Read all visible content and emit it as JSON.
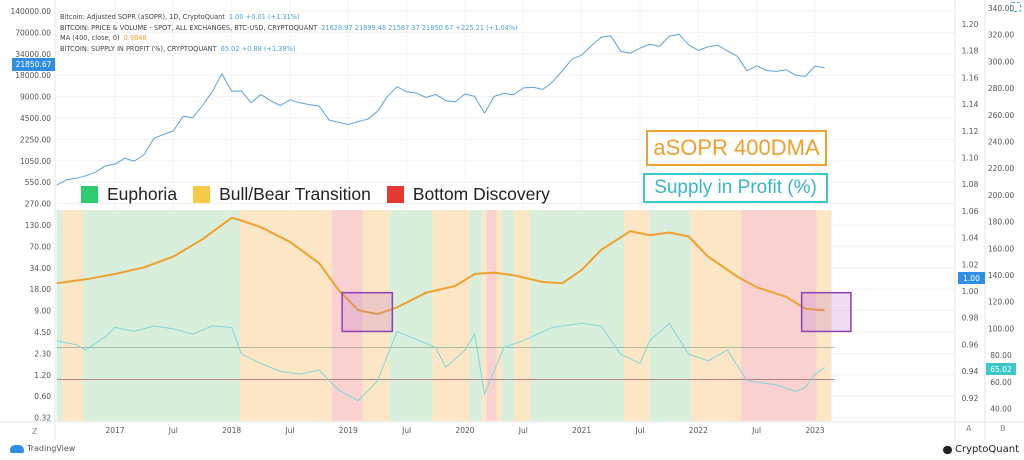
{
  "header": {
    "line1_label": "Bitcoin: Adjusted SOPR (aSOPR), 1D, CryptoQuant",
    "line1_values": "1.00  +0.01 (+1.31%)",
    "line2_label": "BITCOIN: PRICE & VOLUME - SPOT, ALL EXCHANGES, BTC-USD, CRYPTOQUANT",
    "line2_values": "21628.97  21899.48  21587.37  21850.67  +225.21 (+1.04%)",
    "line3_label": "MA (400, close, 0)",
    "line3_values": "0.9848",
    "line4_label": "BITCOIN: SUPPLY IN PROFIT (%), CRYPTOQUANT",
    "line4_values": "65.02  +0.88 (+1.38%)"
  },
  "legend": {
    "euphoria": "Euphoria",
    "transition": "Bull/Bear Transition",
    "bottom": "Bottom Discovery"
  },
  "annotations": {
    "asopr": "aSOPR 400DMA",
    "supply": "Supply in Profit (%)"
  },
  "badges": {
    "price": "21850.67",
    "asopr": "1.00",
    "supply": "65.02"
  },
  "footer": {
    "tradingview": "TradingView",
    "cryptoquant": "CryptoQuant",
    "left_scale_button": "Z",
    "axis_a": "A",
    "axis_b": "B"
  },
  "colors": {
    "euphoria": "#2ecc71",
    "transition": "#f7c948",
    "bottom": "#e53935",
    "price": "#5ba3dc",
    "asopr_ma": "#f0a030",
    "supply": "#7fd6d6",
    "highlight": "#8e3fb5",
    "badge_price": "#2f8ee5",
    "badge_supply": "#3cc8c8"
  },
  "chart_data": {
    "type": "line",
    "x_ticks": [
      "2017",
      "Jul",
      "2018",
      "Jul",
      "2019",
      "Jul",
      "2020",
      "Jul",
      "2021",
      "Jul",
      "2022",
      "Jul",
      "2023"
    ],
    "left_axis": {
      "scale": "log",
      "ticks": [
        "140000.00",
        "70000.00",
        "34000.00",
        "18000.00",
        "9000.00",
        "4500.00",
        "2250.00",
        "1050.00",
        "550.00",
        "270.00",
        "130.00",
        "70.00",
        "34.00",
        "18.00",
        "9.00",
        "4.50",
        "2.30",
        "1.20",
        "0.60",
        "0.32"
      ]
    },
    "axis_a": {
      "ticks": [
        "1.20",
        "1.18",
        "1.16",
        "1.14",
        "1.12",
        "1.10",
        "1.08",
        "1.06",
        "1.04",
        "1.02",
        "1.00",
        "0.98",
        "0.96",
        "0.94",
        "0.92"
      ]
    },
    "axis_b": {
      "ticks": [
        "340.00",
        "320.00",
        "300.00",
        "280.00",
        "260.00",
        "240.00",
        "220.00",
        "200.00",
        "180.00",
        "160.00",
        "140.00",
        "120.00",
        "100.00",
        "80.00",
        "60.00",
        "40.00"
      ]
    },
    "reference_lines_supply": [
      80,
      56
    ],
    "regimes": [
      {
        "type": "euphoria",
        "start": "2016-07-01",
        "end": "2016-07-20"
      },
      {
        "type": "transition",
        "start": "2016-07-20",
        "end": "2016-09-23"
      },
      {
        "type": "euphoria",
        "start": "2016-09-23",
        "end": "2018-01-27"
      },
      {
        "type": "transition",
        "start": "2018-01-27",
        "end": "2018-11-10"
      },
      {
        "type": "bottom",
        "start": "2018-11-10",
        "end": "2019-02-15"
      },
      {
        "type": "transition",
        "start": "2019-02-15",
        "end": "2019-05-08"
      },
      {
        "type": "euphoria",
        "start": "2019-05-08",
        "end": "2019-09-22"
      },
      {
        "type": "transition",
        "start": "2019-09-22",
        "end": "2020-01-15"
      },
      {
        "type": "euphoria",
        "start": "2020-01-15",
        "end": "2020-02-24"
      },
      {
        "type": "transition",
        "start": "2020-02-24",
        "end": "2020-03-08"
      },
      {
        "type": "bottom",
        "start": "2020-03-08",
        "end": "2020-04-08"
      },
      {
        "type": "transition",
        "start": "2020-04-08",
        "end": "2020-04-26"
      },
      {
        "type": "euphoria",
        "start": "2020-04-26",
        "end": "2020-06-03"
      },
      {
        "type": "transition",
        "start": "2020-06-03",
        "end": "2020-07-22"
      },
      {
        "type": "euphoria",
        "start": "2020-07-22",
        "end": "2021-05-12"
      },
      {
        "type": "transition",
        "start": "2021-05-12",
        "end": "2021-07-30"
      },
      {
        "type": "euphoria",
        "start": "2021-07-30",
        "end": "2021-12-08"
      },
      {
        "type": "transition",
        "start": "2021-12-08",
        "end": "2022-05-13"
      },
      {
        "type": "bottom",
        "start": "2022-05-13",
        "end": "2023-01-06"
      },
      {
        "type": "transition",
        "start": "2023-01-06",
        "end": "2023-02-22"
      }
    ],
    "highlight_boxes": [
      {
        "start": "2018-12-12",
        "end": "2019-05-17",
        "asopr_high": 0.998,
        "asopr_low": 0.969
      },
      {
        "start": "2022-11-20",
        "end": "2023-04-22",
        "asopr_high": 0.998,
        "asopr_low": 0.969
      }
    ],
    "series": [
      {
        "name": "BITCOIN: PRICE & VOLUME - SPOT, ALL EXCHANGES, BTC-USD, CRYPTOQUANT",
        "axis": "left",
        "x": [
          "2016-07",
          "2016-08",
          "2016-09",
          "2016-10",
          "2016-11",
          "2016-12",
          "2017-01",
          "2017-02",
          "2017-03",
          "2017-04",
          "2017-05",
          "2017-06",
          "2017-07",
          "2017-08",
          "2017-09",
          "2017-10",
          "2017-11",
          "2017-12",
          "2018-01",
          "2018-02",
          "2018-03",
          "2018-04",
          "2018-05",
          "2018-06",
          "2018-07",
          "2018-08",
          "2018-09",
          "2018-10",
          "2018-11",
          "2018-12",
          "2019-01",
          "2019-02",
          "2019-03",
          "2019-04",
          "2019-05",
          "2019-06",
          "2019-07",
          "2019-08",
          "2019-09",
          "2019-10",
          "2019-11",
          "2019-12",
          "2020-01",
          "2020-02",
          "2020-03",
          "2020-04",
          "2020-05",
          "2020-06",
          "2020-07",
          "2020-08",
          "2020-09",
          "2020-10",
          "2020-11",
          "2020-12",
          "2021-01",
          "2021-02",
          "2021-03",
          "2021-04",
          "2021-05",
          "2021-06",
          "2021-07",
          "2021-08",
          "2021-09",
          "2021-10",
          "2021-11",
          "2021-12",
          "2022-01",
          "2022-02",
          "2022-03",
          "2022-04",
          "2022-05",
          "2022-06",
          "2022-07",
          "2022-08",
          "2022-09",
          "2022-10",
          "2022-11",
          "2022-12",
          "2023-01",
          "2023-02"
        ],
        "y": [
          480,
          570,
          600,
          650,
          730,
          900,
          950,
          1150,
          1050,
          1300,
          2200,
          2500,
          2800,
          4500,
          4300,
          6400,
          10000,
          18000,
          10200,
          10300,
          7000,
          9200,
          7500,
          6400,
          7700,
          7000,
          6600,
          6300,
          4000,
          3700,
          3450,
          3800,
          4100,
          5300,
          8500,
          11800,
          10000,
          9600,
          8300,
          9200,
          7500,
          7200,
          9300,
          8600,
          5000,
          8600,
          9500,
          9100,
          11300,
          11600,
          10800,
          13800,
          19700,
          29000,
          33000,
          45000,
          58800,
          62000,
          37300,
          35000,
          41500,
          47100,
          43800,
          61300,
          65000,
          46300,
          38500,
          43200,
          45500,
          37700,
          31800,
          19800,
          23300,
          20000,
          19400,
          20500,
          17200,
          16500,
          23100,
          21850.67
        ]
      },
      {
        "name": "MA (400, close, 0)",
        "axis": "A",
        "x": [
          "2016-07",
          "2016-10",
          "2017-01",
          "2017-04",
          "2017-07",
          "2017-10",
          "2018-01",
          "2018-02",
          "2018-04",
          "2018-07",
          "2018-10",
          "2018-12",
          "2019-02",
          "2019-04",
          "2019-06",
          "2019-09",
          "2019-12",
          "2020-02",
          "2020-04",
          "2020-06",
          "2020-09",
          "2020-11",
          "2021-01",
          "2021-03",
          "2021-06",
          "2021-08",
          "2021-10",
          "2021-12",
          "2022-02",
          "2022-05",
          "2022-07",
          "2022-10",
          "2022-12",
          "2023-02"
        ],
        "y": [
          1.005,
          1.008,
          1.012,
          1.017,
          1.025,
          1.038,
          1.054,
          1.052,
          1.047,
          1.036,
          1.02,
          1.0,
          0.985,
          0.982,
          0.987,
          0.998,
          1.003,
          1.012,
          1.013,
          1.011,
          1.006,
          1.005,
          1.015,
          1.03,
          1.044,
          1.041,
          1.043,
          1.04,
          1.025,
          1.01,
          1.002,
          0.995,
          0.986,
          0.9848
        ]
      },
      {
        "name": "BITCOIN: SUPPLY IN PROFIT (%), CRYPTOQUANT",
        "axis": "B",
        "x": [
          "2016-07",
          "2016-09",
          "2016-10",
          "2016-12",
          "2017-01",
          "2017-03",
          "2017-05",
          "2017-07",
          "2017-09",
          "2017-11",
          "2018-01",
          "2018-02",
          "2018-04",
          "2018-06",
          "2018-08",
          "2018-10",
          "2018-12",
          "2019-02",
          "2019-04",
          "2019-06",
          "2019-08",
          "2019-10",
          "2019-11",
          "2020-01",
          "2020-02",
          "2020-03",
          "2020-05",
          "2020-07",
          "2020-10",
          "2021-01",
          "2021-03",
          "2021-05",
          "2021-07",
          "2021-08",
          "2021-10",
          "2021-12",
          "2022-02",
          "2022-04",
          "2022-06",
          "2022-09",
          "2022-11",
          "2022-12",
          "2023-01",
          "2023-02"
        ],
        "y": [
          85,
          82,
          78,
          88,
          95,
          92,
          96,
          94,
          90,
          96,
          95,
          75,
          68,
          62,
          60,
          63,
          48,
          40,
          55,
          92,
          86,
          80,
          65,
          78,
          90,
          45,
          80,
          85,
          95,
          98,
          96,
          75,
          68,
          85,
          98,
          75,
          70,
          78,
          55,
          52,
          47,
          50,
          60,
          65.02
        ]
      }
    ]
  }
}
